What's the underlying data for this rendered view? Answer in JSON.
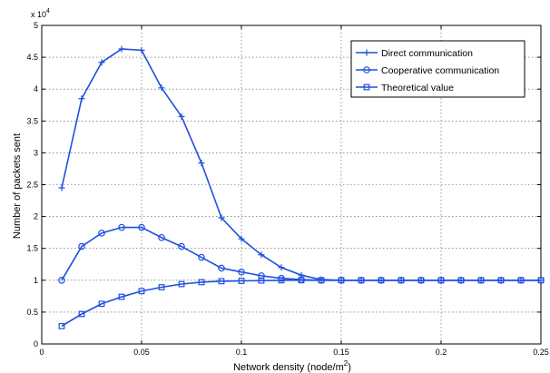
{
  "chart_data": {
    "type": "line",
    "xlabel": "Network density (node/m",
    "xlabel_superscript": "2",
    "xlabel_suffix": ")",
    "ylabel": "Number of packets sent",
    "y_exponent_base": "x 10",
    "y_exponent": "4",
    "xlim": [
      0,
      0.25
    ],
    "ylim": [
      0,
      5
    ],
    "x_ticks": [
      "0",
      "0.05",
      "0.1",
      "0.15",
      "0.2",
      "0.25"
    ],
    "y_ticks": [
      "0",
      "0.5",
      "1",
      "1.5",
      "2",
      "2.5",
      "3",
      "3.5",
      "4",
      "4.5",
      "5"
    ],
    "grid": true,
    "legend_position": "top-right",
    "line_color": "#1f4fe0",
    "x": [
      0.01,
      0.02,
      0.03,
      0.04,
      0.05,
      0.06,
      0.07,
      0.08,
      0.09,
      0.1,
      0.11,
      0.12,
      0.13,
      0.14,
      0.15,
      0.16,
      0.17,
      0.18,
      0.19,
      0.2,
      0.21,
      0.22,
      0.23,
      0.24,
      0.25
    ],
    "series": [
      {
        "name": "Direct communication",
        "marker": "plus",
        "values": [
          2.45,
          3.85,
          4.42,
          4.63,
          4.61,
          4.02,
          3.57,
          2.84,
          1.98,
          1.65,
          1.4,
          1.2,
          1.08,
          1.01,
          1.0,
          1.0,
          1.0,
          1.0,
          1.0,
          1.0,
          1.0,
          1.0,
          1.0,
          1.0,
          1.0
        ]
      },
      {
        "name": "Cooperative communication",
        "marker": "circle",
        "values": [
          1.0,
          1.53,
          1.74,
          1.83,
          1.83,
          1.67,
          1.53,
          1.36,
          1.19,
          1.13,
          1.07,
          1.03,
          1.01,
          1.0,
          1.0,
          1.0,
          1.0,
          1.0,
          1.0,
          1.0,
          1.0,
          1.0,
          1.0,
          1.0,
          1.0
        ]
      },
      {
        "name": "Theoretical value",
        "marker": "square",
        "values": [
          0.28,
          0.47,
          0.63,
          0.74,
          0.83,
          0.89,
          0.94,
          0.97,
          0.985,
          0.99,
          0.995,
          1.0,
          1.0,
          1.0,
          1.0,
          1.0,
          1.0,
          1.0,
          1.0,
          1.0,
          1.0,
          1.0,
          1.0,
          1.0,
          1.0
        ]
      }
    ]
  }
}
